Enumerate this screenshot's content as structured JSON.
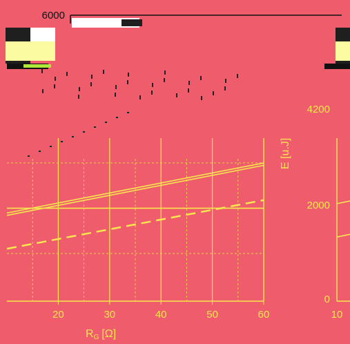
{
  "chart_data": [
    {
      "type": "line",
      "title": "",
      "xlabel": "R",
      "xlabel_subscript": "G",
      "xlabel_unit": "[Ω]",
      "xlim": [
        10,
        60
      ],
      "x_ticks": [
        "20",
        "30",
        "40",
        "50",
        "60"
      ],
      "ylabel": "",
      "ylim": [
        0,
        6000
      ],
      "y_ticks": [
        "6000"
      ],
      "grid": true,
      "x": [
        10,
        60
      ],
      "series": [
        {
          "style": "solid",
          "values": [
            1850,
            2900
          ]
        },
        {
          "style": "solid",
          "values": [
            1800,
            2850
          ]
        },
        {
          "style": "dashed",
          "values": [
            1100,
            2120
          ]
        },
        {
          "style": "solid",
          "values": [
            1950,
            1950
          ]
        }
      ],
      "colors": {
        "background": "#ef5d6d",
        "lines": "#f6e74d",
        "grid": "#f6e74d"
      }
    },
    {
      "type": "line",
      "title": "",
      "xlabel": "",
      "xlim": [
        10,
        60
      ],
      "x_ticks": [
        "10"
      ],
      "ylabel": "E [u.J]",
      "ylim": [
        0,
        6000
      ],
      "y_ticks": [
        "0",
        "2000",
        "4200"
      ],
      "grid": true,
      "x": [
        10,
        60
      ],
      "series": [
        {
          "style": "solid",
          "values": [
            1900,
            2900
          ]
        },
        {
          "style": "solid",
          "values": [
            1200,
            2100
          ]
        }
      ],
      "colors": {
        "background": "#ef5d6d",
        "lines": "#f6e74d",
        "grid": "#f6e74d"
      }
    }
  ]
}
